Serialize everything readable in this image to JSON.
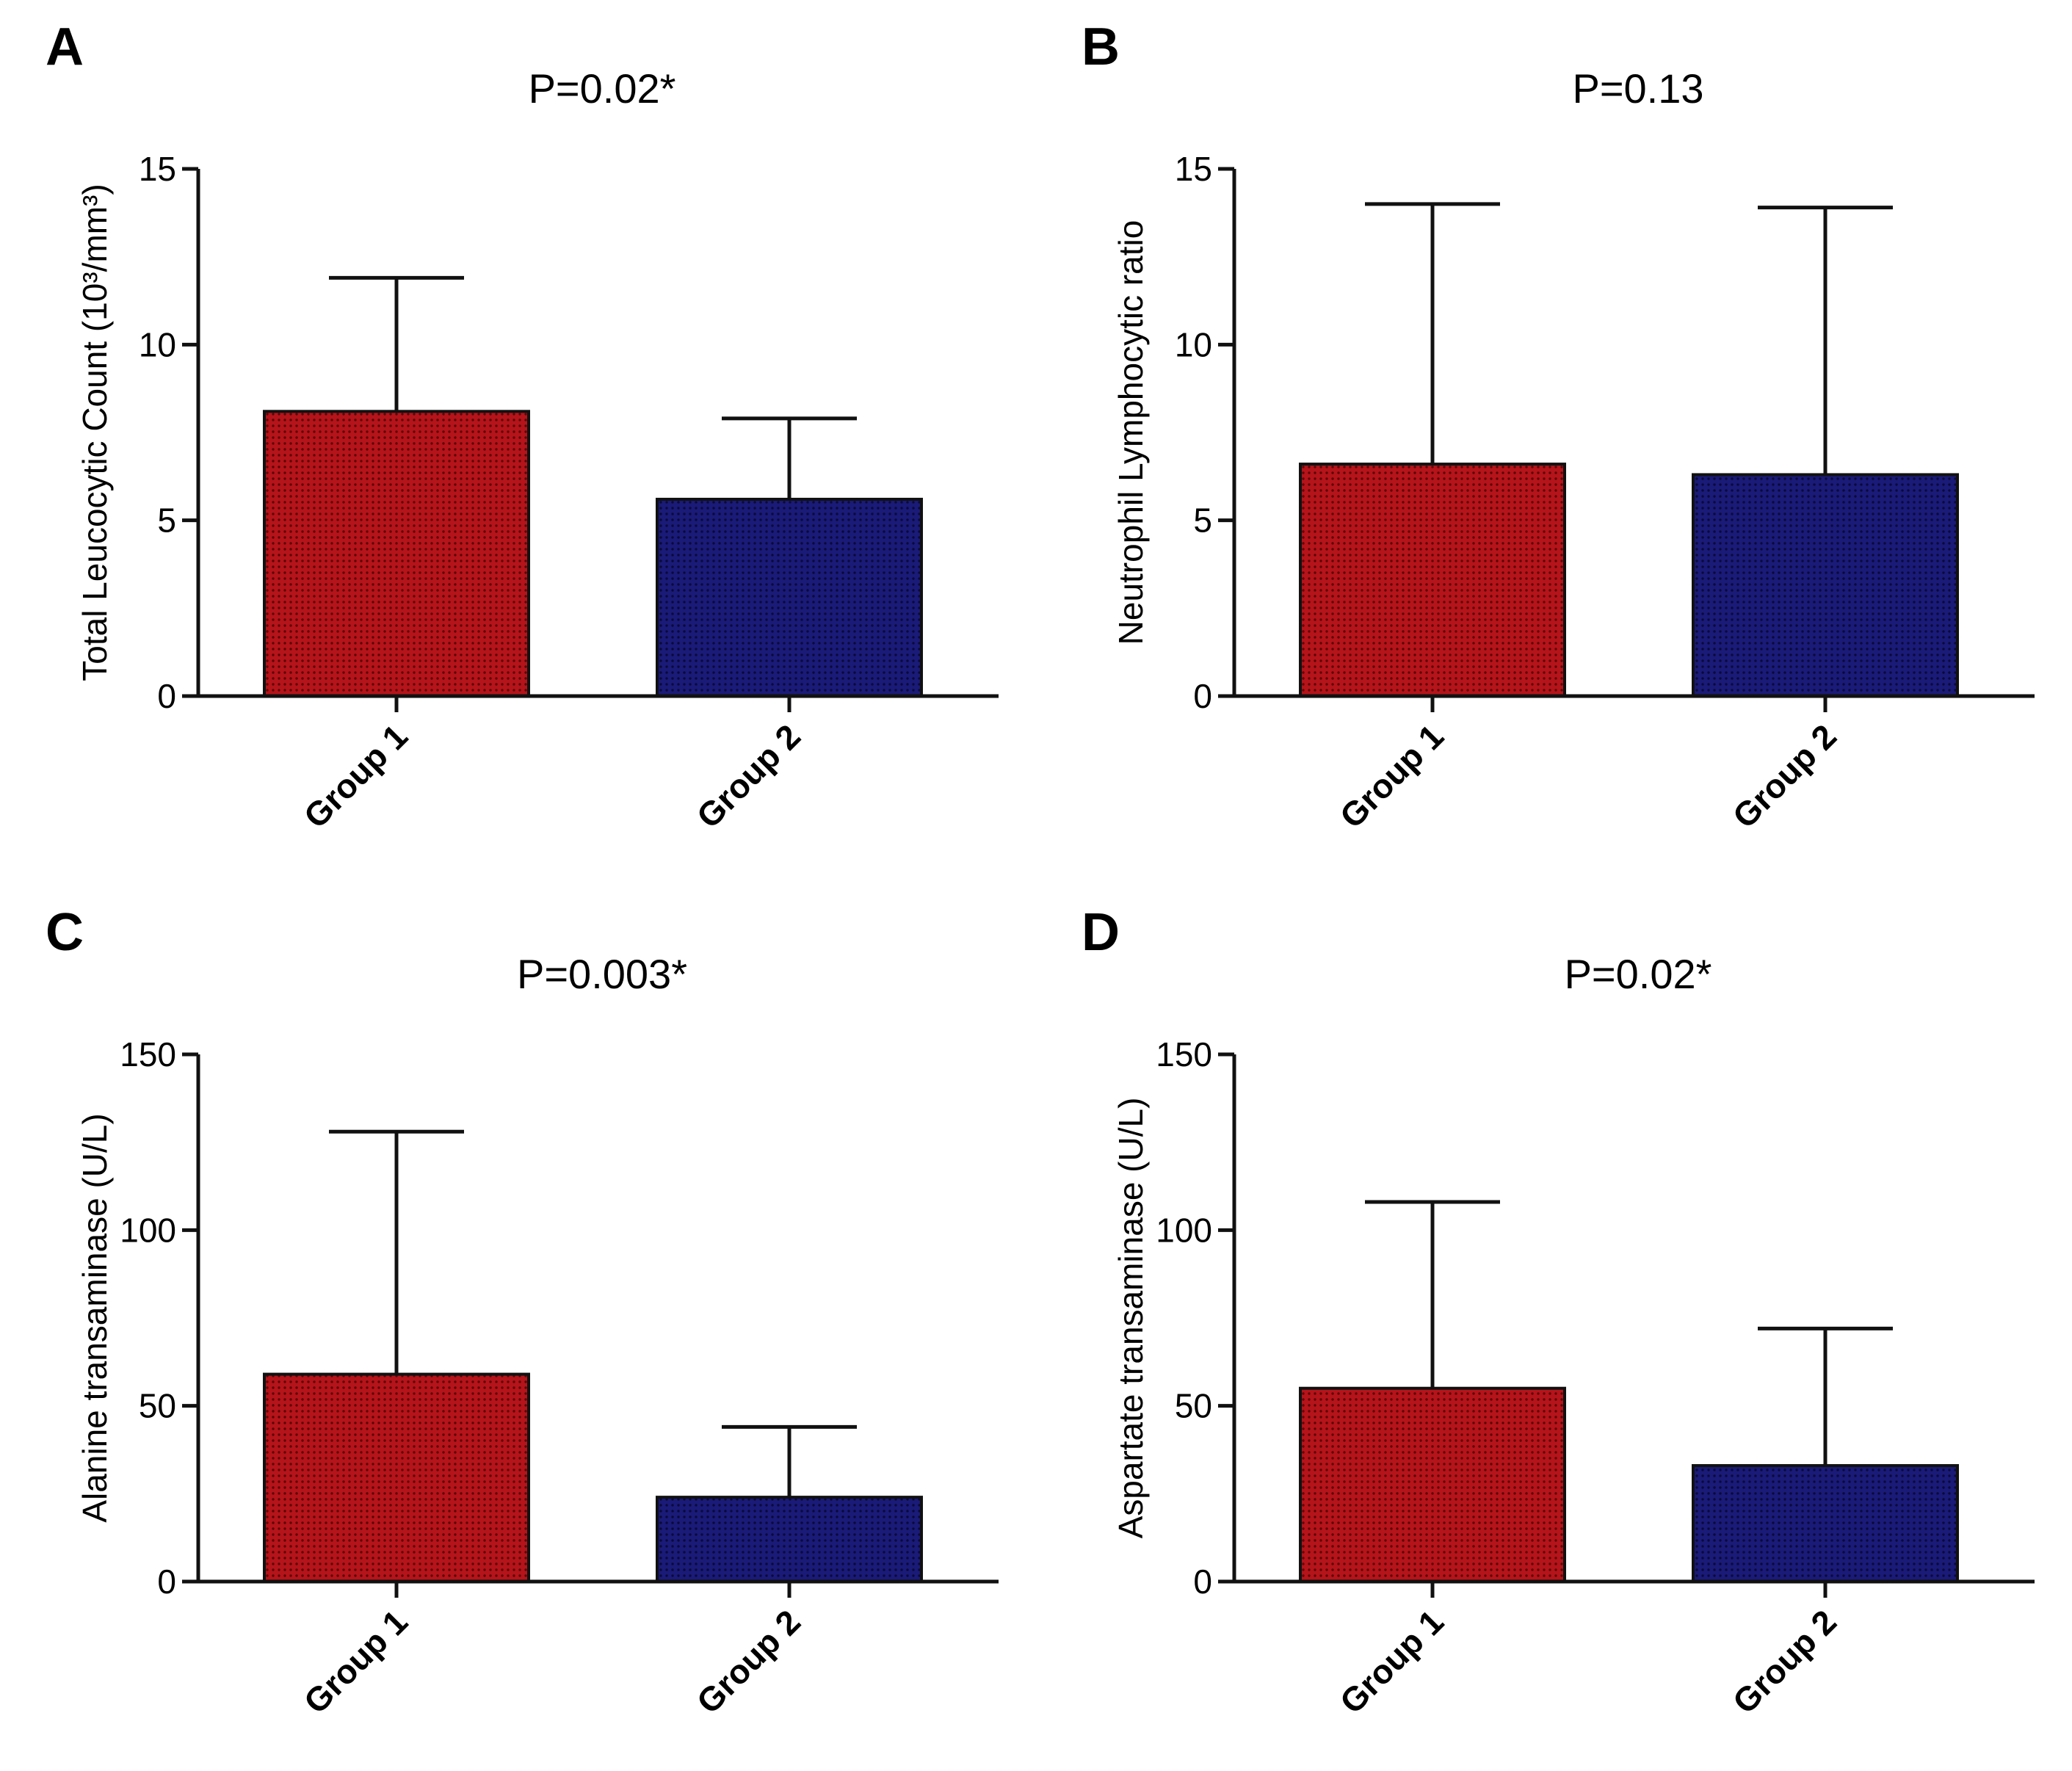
{
  "colors": {
    "group1": "#b5141a",
    "group2": "#1a1a78",
    "axis": "#111111"
  },
  "chart_data": [
    {
      "type": "bar",
      "panel": "A",
      "title": "P=0.02*",
      "ylabel": "Total Leucocytic Count (10³/mm³)",
      "categories": [
        "Group 1",
        "Group 2"
      ],
      "values": [
        8.1,
        5.6
      ],
      "error_upper": [
        11.9,
        7.9
      ],
      "ylim": [
        0,
        15
      ],
      "yticks": [
        0,
        5,
        10,
        15
      ]
    },
    {
      "type": "bar",
      "panel": "B",
      "title": "P=0.13",
      "ylabel": "Neutrophil Lymphocytic ratio",
      "categories": [
        "Group 1",
        "Group 2"
      ],
      "values": [
        6.6,
        6.3
      ],
      "error_upper": [
        14.0,
        13.9
      ],
      "ylim": [
        0,
        15
      ],
      "yticks": [
        0,
        5,
        10,
        15
      ]
    },
    {
      "type": "bar",
      "panel": "C",
      "title": "P=0.003*",
      "ylabel": "Alanine transaminase (U/L)",
      "categories": [
        "Group 1",
        "Group 2"
      ],
      "values": [
        59,
        24
      ],
      "error_upper": [
        128,
        44
      ],
      "ylim": [
        0,
        150
      ],
      "yticks": [
        0,
        50,
        100,
        150
      ]
    },
    {
      "type": "bar",
      "panel": "D",
      "title": "P=0.02*",
      "ylabel": "Aspartate transaminase (U/L)",
      "categories": [
        "Group 1",
        "Group 2"
      ],
      "values": [
        55,
        33
      ],
      "error_upper": [
        108,
        72
      ],
      "ylim": [
        0,
        150
      ],
      "yticks": [
        0,
        50,
        100,
        150
      ]
    }
  ]
}
